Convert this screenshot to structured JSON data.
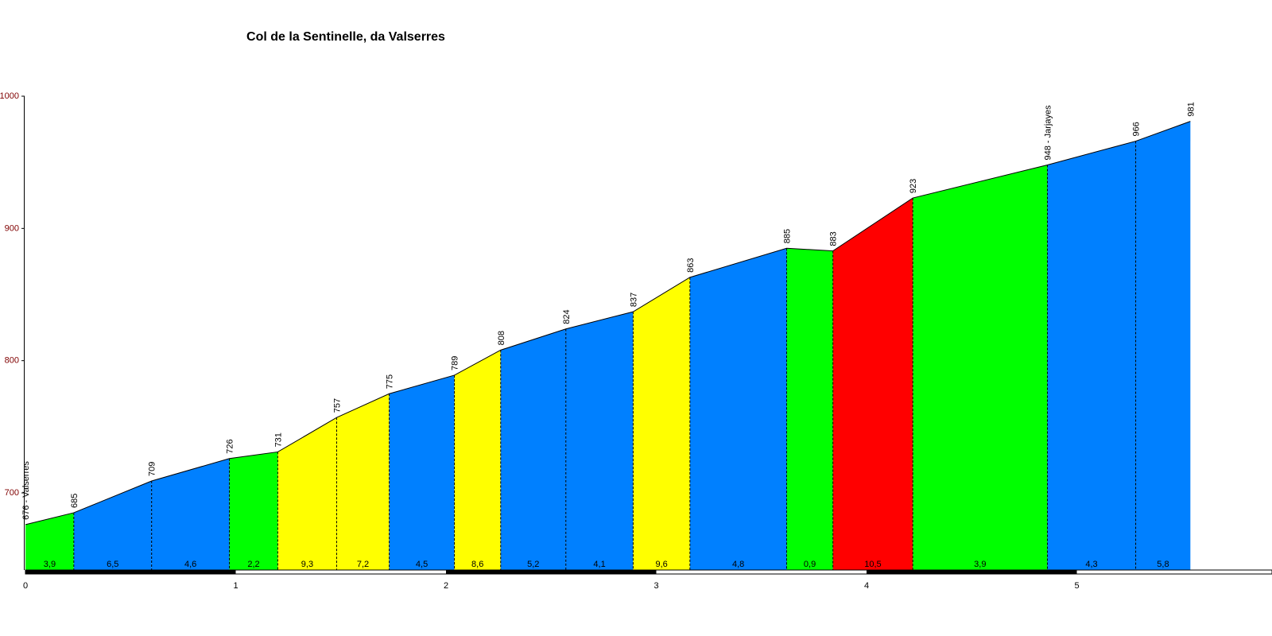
{
  "chart_data": {
    "type": "area",
    "title": "Col de la Sentinelle, da Valserres",
    "xlabel": "",
    "ylabel": "",
    "xlim": [
      0,
      5.85
    ],
    "ylim": [
      640,
      1000
    ],
    "x_ticks": [
      0,
      1,
      2,
      3,
      4,
      5
    ],
    "y_ticks": [
      700,
      800,
      900,
      1000
    ],
    "grid": false,
    "legend": "none",
    "colors": {
      "green": "#00ff00",
      "blue": "#0080ff",
      "yellow": "#ffff00",
      "red": "#ff0000",
      "axis": "#000000",
      "tick_label": "#800000"
    },
    "points": [
      {
        "x": 0.0,
        "elevation": 676,
        "label": "676 - Valserres"
      },
      {
        "x": 0.23,
        "elevation": 685,
        "label": "685"
      },
      {
        "x": 0.6,
        "elevation": 709,
        "label": "709"
      },
      {
        "x": 0.97,
        "elevation": 726,
        "label": "726"
      },
      {
        "x": 1.2,
        "elevation": 731,
        "label": "731"
      },
      {
        "x": 1.48,
        "elevation": 757,
        "label": "757"
      },
      {
        "x": 1.73,
        "elevation": 775,
        "label": "775"
      },
      {
        "x": 2.04,
        "elevation": 789,
        "label": "789"
      },
      {
        "x": 2.26,
        "elevation": 808,
        "label": "808"
      },
      {
        "x": 2.57,
        "elevation": 824,
        "label": "824"
      },
      {
        "x": 2.89,
        "elevation": 837,
        "label": "837"
      },
      {
        "x": 3.16,
        "elevation": 863,
        "label": "863"
      },
      {
        "x": 3.62,
        "elevation": 885,
        "label": "885"
      },
      {
        "x": 3.84,
        "elevation": 883,
        "label": "883"
      },
      {
        "x": 4.22,
        "elevation": 923,
        "label": "923"
      },
      {
        "x": 4.86,
        "elevation": 948,
        "label": "948 - Jarjayes"
      },
      {
        "x": 5.28,
        "elevation": 966,
        "label": "966"
      },
      {
        "x": 5.54,
        "elevation": 981,
        "label": "981"
      }
    ],
    "segments": [
      {
        "gradient": "3,9",
        "color": "green"
      },
      {
        "gradient": "6,5",
        "color": "blue"
      },
      {
        "gradient": "4,6",
        "color": "blue"
      },
      {
        "gradient": "2,2",
        "color": "green"
      },
      {
        "gradient": "9,3",
        "color": "yellow"
      },
      {
        "gradient": "7,2",
        "color": "yellow"
      },
      {
        "gradient": "4,5",
        "color": "blue"
      },
      {
        "gradient": "8,6",
        "color": "yellow"
      },
      {
        "gradient": "5,2",
        "color": "blue"
      },
      {
        "gradient": "4,1",
        "color": "blue"
      },
      {
        "gradient": "9,6",
        "color": "yellow"
      },
      {
        "gradient": "4,8",
        "color": "blue"
      },
      {
        "gradient": "0,9",
        "color": "green"
      },
      {
        "gradient": "10,5",
        "color": "red"
      },
      {
        "gradient": "3,9",
        "color": "green"
      },
      {
        "gradient": "4,3",
        "color": "blue"
      },
      {
        "gradient": "5,8",
        "color": "blue"
      }
    ]
  }
}
